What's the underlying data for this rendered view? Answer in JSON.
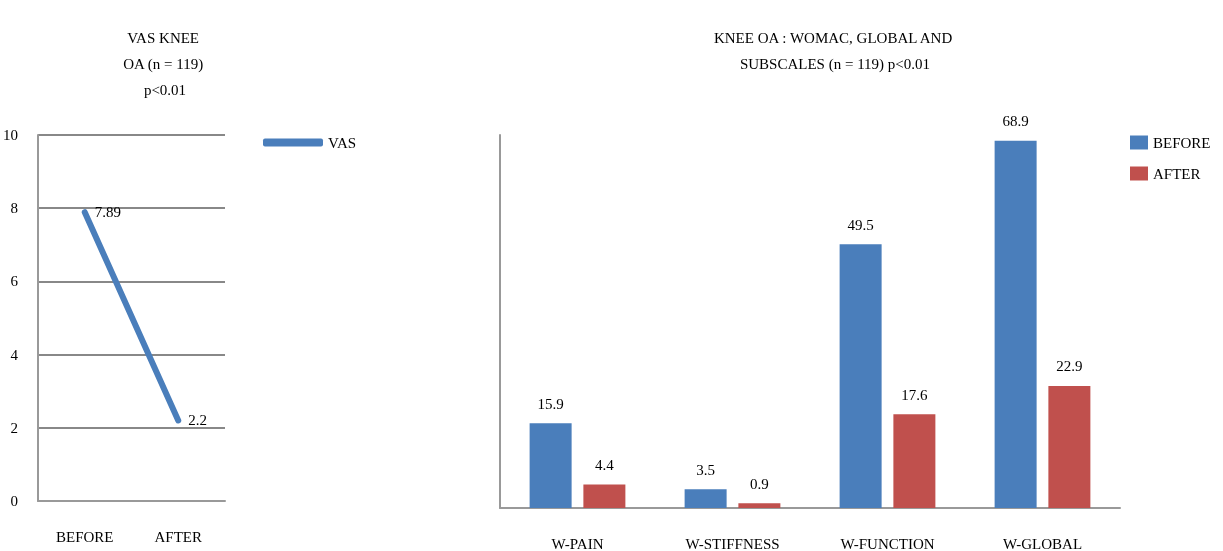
{
  "chart_data": [
    {
      "type": "line",
      "title": "VAS KNEE OA (n = 119) p<0.01",
      "categories": [
        "BEFORE",
        "AFTER"
      ],
      "series": [
        {
          "name": "VAS",
          "color": "#4a7ebb",
          "values": [
            7.89,
            2.2
          ]
        }
      ],
      "ylim": [
        0,
        10
      ],
      "yticks": [
        0,
        2,
        4,
        6,
        8,
        10
      ],
      "grid": "y",
      "legend": "top right",
      "marker": "none",
      "data_labels": true
    },
    {
      "type": "bar",
      "title": "KNEE OA : WOMAC, GLOBAL AND SUBSCALES (n = 119) p<0.01",
      "categories": [
        "W-PAIN",
        "W-STIFFNESS",
        "W-FUNCTION",
        "W-GLOBAL"
      ],
      "series": [
        {
          "name": "BEFORE",
          "color": "#4a7ebb",
          "values": [
            15.9,
            3.5,
            49.5,
            68.9
          ]
        },
        {
          "name": "AFTER",
          "color": "#c0504d",
          "values": [
            4.4,
            0.9,
            17.6,
            22.9
          ]
        }
      ],
      "tick_labels": "x",
      "grid": false,
      "legend": "top right",
      "data_labels": true
    }
  ]
}
